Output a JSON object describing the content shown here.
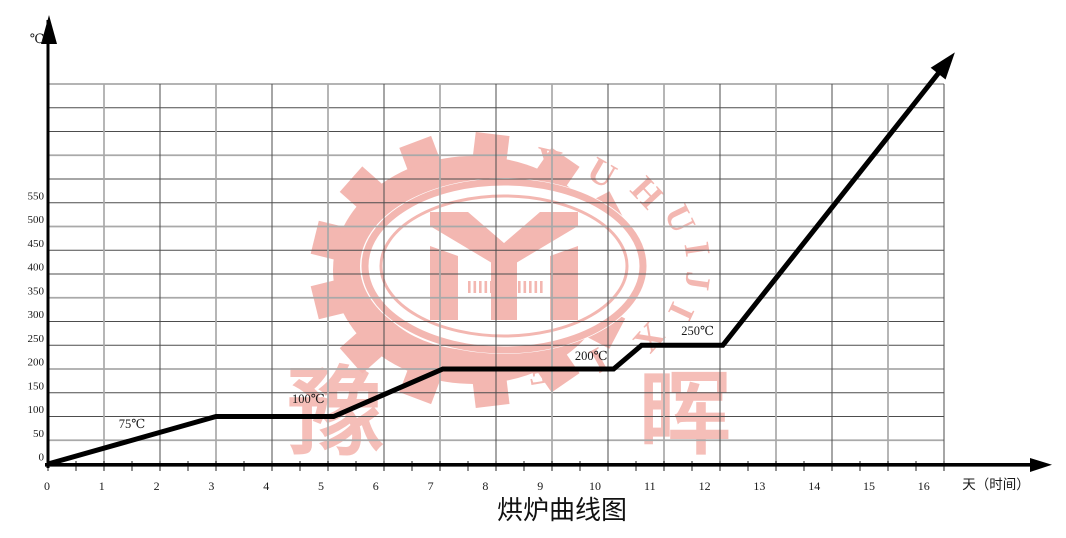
{
  "page": {
    "background": "#ffffff",
    "title": "烘炉曲线图"
  },
  "colors": {
    "curve": "#000000",
    "axis": "#000000",
    "grid_major": "#a9a9a9",
    "grid_minor": "#4d4d4d",
    "text": "#1a1a1a",
    "watermark_pink": "#f2aba4"
  },
  "watermark": {
    "arc_text": "YUHUIJIXIE",
    "cn_char_left": "豫",
    "cn_char_right": "晖"
  },
  "chart_data": {
    "type": "line",
    "title": "烘炉曲线图",
    "xlabel": "天（时间）",
    "ylabel": "℃",
    "x_ticks": [
      0,
      1,
      2,
      3,
      4,
      5,
      6,
      7,
      8,
      9,
      10,
      11,
      12,
      13,
      14,
      15,
      16
    ],
    "y_ticks": [
      0,
      50,
      100,
      150,
      200,
      250,
      300,
      350,
      400,
      450,
      500,
      550
    ],
    "xlim": [
      0,
      16
    ],
    "ylim": [
      0,
      800
    ],
    "grid": true,
    "legend": "none",
    "series": [
      {
        "name": "烘炉曲线",
        "arrow_end": true,
        "points": [
          [
            0,
            0
          ],
          [
            3,
            100
          ],
          [
            5.1,
            100
          ],
          [
            7.05,
            200
          ],
          [
            10.1,
            200
          ],
          [
            10.6,
            250
          ],
          [
            12.05,
            250
          ],
          [
            16.05,
            845
          ]
        ]
      }
    ],
    "annotations": [
      {
        "label": "75℃",
        "day": 1.5,
        "temp": 82
      },
      {
        "label": "100℃",
        "day": 4.65,
        "temp": 134
      },
      {
        "label": "200℃",
        "day": 9.7,
        "temp": 225
      },
      {
        "label": "250℃",
        "day": 11.6,
        "temp": 278
      }
    ]
  }
}
